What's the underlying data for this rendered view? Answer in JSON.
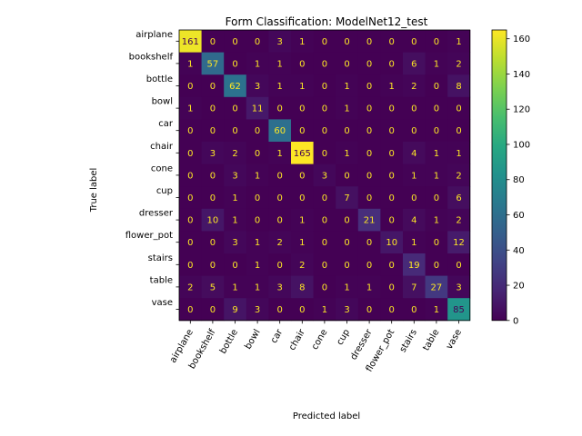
{
  "chart_data": {
    "type": "heatmap",
    "title": "Form Classification: ModelNet12_test",
    "xlabel": "Predicted label",
    "ylabel": "True label",
    "x_categories": [
      "airplane",
      "bookshelf",
      "bottle",
      "bowl",
      "car",
      "chair",
      "cone",
      "cup",
      "dresser",
      "flower_pot",
      "stairs",
      "table",
      "vase"
    ],
    "y_categories": [
      "airplane",
      "bookshelf",
      "bottle",
      "bowl",
      "car",
      "chair",
      "cone",
      "cup",
      "dresser",
      "flower_pot",
      "stairs",
      "table",
      "vase"
    ],
    "values": [
      [
        161,
        0,
        0,
        0,
        3,
        1,
        0,
        0,
        0,
        0,
        0,
        0,
        1
      ],
      [
        1,
        57,
        0,
        1,
        1,
        0,
        0,
        0,
        0,
        0,
        6,
        1,
        2
      ],
      [
        0,
        0,
        62,
        3,
        1,
        1,
        0,
        1,
        0,
        1,
        2,
        0,
        8
      ],
      [
        1,
        0,
        0,
        11,
        0,
        0,
        0,
        1,
        0,
        0,
        0,
        0,
        0
      ],
      [
        0,
        0,
        0,
        0,
        60,
        0,
        0,
        0,
        0,
        0,
        0,
        0,
        0
      ],
      [
        0,
        3,
        2,
        0,
        1,
        165,
        0,
        1,
        0,
        0,
        4,
        1,
        1
      ],
      [
        0,
        0,
        3,
        1,
        0,
        0,
        3,
        0,
        0,
        0,
        1,
        1,
        2
      ],
      [
        0,
        0,
        1,
        0,
        0,
        0,
        0,
        7,
        0,
        0,
        0,
        0,
        6
      ],
      [
        0,
        10,
        1,
        0,
        0,
        1,
        0,
        0,
        21,
        0,
        4,
        1,
        2
      ],
      [
        0,
        0,
        3,
        1,
        2,
        1,
        0,
        0,
        0,
        10,
        1,
        0,
        12
      ],
      [
        0,
        0,
        0,
        1,
        0,
        2,
        0,
        0,
        0,
        0,
        19,
        0,
        0
      ],
      [
        2,
        5,
        1,
        1,
        3,
        8,
        0,
        1,
        1,
        0,
        7,
        27,
        3
      ],
      [
        0,
        0,
        9,
        3,
        0,
        0,
        1,
        3,
        0,
        0,
        0,
        1,
        85
      ]
    ],
    "colormap": "viridis",
    "value_range": [
      0,
      165
    ],
    "colorbar_ticks": [
      0,
      20,
      40,
      60,
      80,
      100,
      120,
      140,
      160
    ],
    "grid": false
  }
}
